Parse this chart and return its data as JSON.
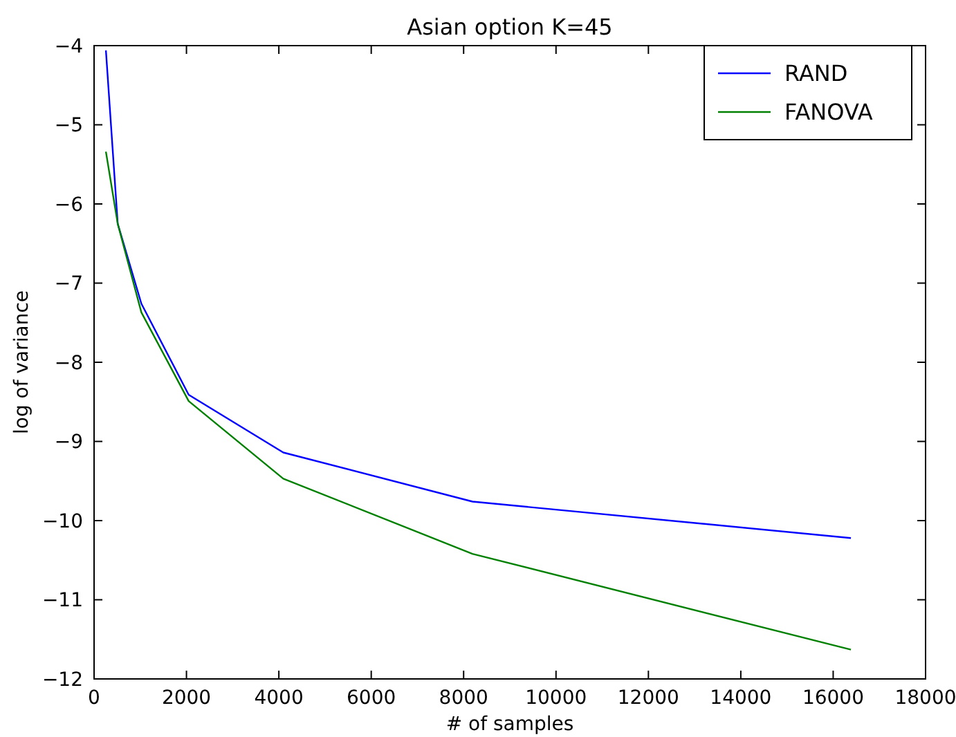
{
  "chart_data": {
    "type": "line",
    "title": "Asian option K=45",
    "xlabel": "# of samples",
    "ylabel": "log of variance",
    "x": [
      256,
      512,
      1024,
      2048,
      4096,
      8192,
      16384
    ],
    "series": [
      {
        "name": "RAND",
        "color": "#0000ff",
        "values": [
          -4.06,
          -6.25,
          -7.26,
          -8.41,
          -9.14,
          -9.76,
          -10.22
        ]
      },
      {
        "name": "FANOVA",
        "color": "#008000",
        "values": [
          -5.34,
          -6.25,
          -7.37,
          -8.49,
          -9.47,
          -10.42,
          -11.63
        ]
      }
    ],
    "xlim": [
      0,
      18000
    ],
    "xticks": [
      0,
      2000,
      4000,
      6000,
      8000,
      10000,
      12000,
      14000,
      16000,
      18000
    ],
    "ylim": [
      -12,
      -4
    ],
    "yticks": [
      -12,
      -11,
      -10,
      -9,
      -8,
      -7,
      -6,
      -5,
      -4
    ],
    "legend": "top right",
    "grid": false,
    "marker": "none",
    "line_style": "solid"
  }
}
